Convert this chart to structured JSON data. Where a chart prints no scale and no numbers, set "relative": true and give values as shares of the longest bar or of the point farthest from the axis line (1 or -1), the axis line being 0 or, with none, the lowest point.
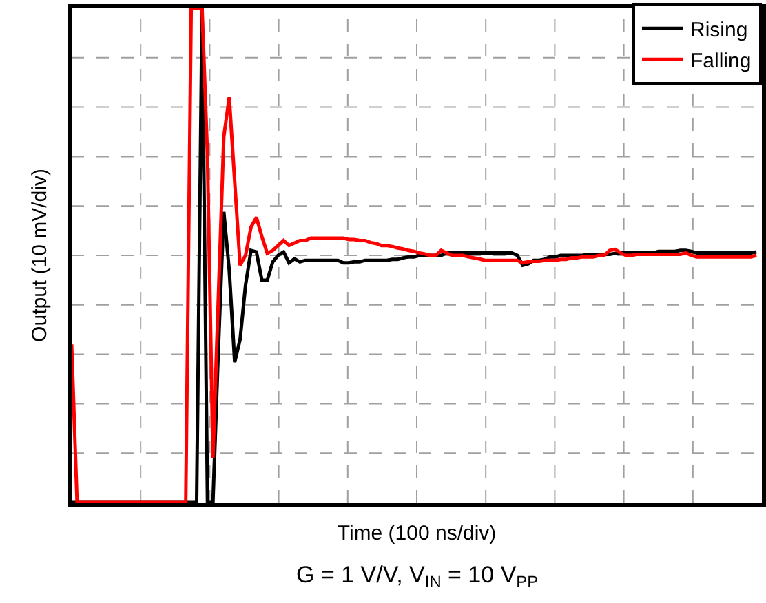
{
  "chart_data": {
    "type": "line",
    "relative": true,
    "xlabel": "Time (100 ns/div)",
    "ylabel": "Output (10 mV/div)",
    "annotations": [
      "G = 1 V/V, V$_{IN}$ = 10 V$_{PP}$"
    ],
    "categories": [
      null,
      null,
      null,
      null,
      null,
      null,
      null,
      null,
      null,
      null,
      null,
      null,
      null,
      null,
      null,
      null,
      null,
      null,
      null,
      null,
      null,
      null,
      null,
      null,
      null,
      null,
      null,
      null,
      null,
      null,
      null,
      null,
      null,
      null,
      null,
      null,
      null,
      null,
      null,
      null,
      null,
      null,
      null,
      null,
      null,
      null,
      null,
      null,
      null,
      null,
      null,
      null,
      null,
      null,
      null,
      null,
      null,
      null,
      null,
      null,
      null,
      null,
      null,
      null,
      null,
      null,
      null,
      null,
      null,
      null,
      null,
      null,
      null,
      null,
      null,
      null,
      null,
      null,
      null,
      null,
      null,
      null,
      null,
      null,
      null,
      null,
      null,
      null,
      null,
      null,
      null,
      null,
      null,
      null,
      null,
      null,
      null,
      null,
      null,
      null,
      null,
      null,
      null,
      null,
      null,
      null,
      null,
      null,
      null,
      null,
      null,
      null,
      null,
      null,
      null,
      null,
      null,
      null,
      null,
      null,
      null,
      null,
      null,
      null,
      null,
      null,
      null
    ],
    "grid": true,
    "legend": "top right",
    "marker": "none",
    "line_style": "solid",
    "series": [
      {
        "name": "Rising",
        "color": "#000000",
        "values": [
          0,
          0,
          0,
          0,
          0,
          0,
          0,
          0,
          0,
          0,
          0,
          0,
          0,
          0,
          0,
          0,
          0,
          0,
          0,
          0,
          0,
          0,
          0,
          0,
          1,
          0,
          0,
          0.31,
          0.588,
          0.47,
          0.284,
          0.33,
          0.44,
          0.51,
          0.507,
          0.45,
          0.45,
          0.487,
          0.5,
          0.507,
          0.485,
          0.493,
          0.487,
          0.49,
          0.49,
          0.49,
          0.49,
          0.49,
          0.49,
          0.49,
          0.485,
          0.485,
          0.487,
          0.487,
          0.49,
          0.49,
          0.49,
          0.49,
          0.49,
          0.492,
          0.492,
          0.495,
          0.497,
          0.497,
          0.5,
          0.5,
          0.5,
          0.5,
          0.5,
          0.505,
          0.505,
          0.505,
          0.505,
          0.505,
          0.505,
          0.505,
          0.505,
          0.505,
          0.505,
          0.505,
          0.505,
          0.505,
          0.5,
          0.48,
          0.483,
          0.49,
          0.49,
          0.492,
          0.497,
          0.497,
          0.5,
          0.5,
          0.5,
          0.5,
          0.5,
          0.502,
          0.502,
          0.502,
          0.502,
          0.502,
          0.504,
          0.505,
          0.505,
          0.505,
          0.505,
          0.505,
          0.505,
          0.505,
          0.508,
          0.508,
          0.508,
          0.508,
          0.51,
          0.51,
          0.508,
          0.505,
          0.505,
          0.505,
          0.505,
          0.505,
          0.505,
          0.505,
          0.505,
          0.505,
          0.505,
          0.505,
          0.507
        ]
      },
      {
        "name": "Falling",
        "color": "#ff0000",
        "values": [
          0.32,
          0,
          0,
          0,
          0,
          0,
          0,
          0,
          0,
          0,
          0,
          0,
          0,
          0,
          0,
          0,
          0,
          0,
          0,
          0,
          0,
          0,
          1,
          1,
          1,
          0.7,
          0.09,
          0.415,
          0.74,
          0.82,
          0.65,
          0.48,
          0.5,
          0.557,
          0.577,
          0.538,
          0.504,
          0.51,
          0.52,
          0.53,
          0.52,
          0.525,
          0.53,
          0.53,
          0.535,
          0.535,
          0.535,
          0.535,
          0.535,
          0.535,
          0.535,
          0.532,
          0.532,
          0.53,
          0.53,
          0.526,
          0.524,
          0.52,
          0.52,
          0.518,
          0.515,
          0.513,
          0.51,
          0.508,
          0.505,
          0.503,
          0.5,
          0.5,
          0.51,
          0.505,
          0.5,
          0.5,
          0.5,
          0.497,
          0.495,
          0.493,
          0.49,
          0.49,
          0.49,
          0.49,
          0.49,
          0.49,
          0.49,
          0.485,
          0.487,
          0.488,
          0.488,
          0.49,
          0.49,
          0.49,
          0.492,
          0.492,
          0.495,
          0.495,
          0.497,
          0.497,
          0.497,
          0.5,
          0.5,
          0.51,
          0.512,
          0.505,
          0.5,
          0.5,
          0.502,
          0.502,
          0.502,
          0.502,
          0.502,
          0.502,
          0.502,
          0.502,
          0.502,
          0.505,
          0.5,
          0.497,
          0.497,
          0.497,
          0.497,
          0.497,
          0.497,
          0.497,
          0.497,
          0.497,
          0.497,
          0.497,
          0.5
        ]
      }
    ]
  }
}
